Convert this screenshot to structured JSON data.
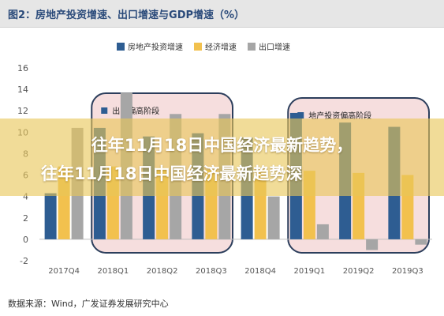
{
  "figure": {
    "title": "图2：房地产投资增速、出口增速与GDP增速（%）",
    "source": "数据来源：Wind，广发证券发展研究中心"
  },
  "overlay": {
    "headline_line1": "往年11月18日中国经济最新趋势，",
    "headline_line2": "往年11月18日中国经济最新趋势深"
  },
  "colors": {
    "real_estate": "#2e5d92",
    "gdp": "#f2c14e",
    "export": "#a6a6a6",
    "box_fill": "#f6dede",
    "box_stroke": "#2c3e5c",
    "overlay": "#e8c658"
  },
  "chart_data": {
    "type": "bar",
    "categories": [
      "2017Q4",
      "2018Q1",
      "2018Q2",
      "2018Q3",
      "2018Q4",
      "2019Q1",
      "2019Q2",
      "2019Q3"
    ],
    "series": [
      {
        "name": "房地产投资增速",
        "values": [
          4.3,
          10.4,
          9.6,
          9.9,
          9.5,
          11.8,
          10.9,
          10.5
        ]
      },
      {
        "name": "经济增速",
        "values": [
          6.8,
          6.8,
          6.7,
          6.5,
          6.4,
          6.4,
          6.2,
          6.0
        ]
      },
      {
        "name": "出口增速",
        "values": [
          10.4,
          13.7,
          11.7,
          11.7,
          4.0,
          1.4,
          -1.0,
          -0.5
        ]
      }
    ],
    "ylim": [
      -2,
      16
    ],
    "yticks": [
      -2,
      0,
      2,
      4,
      6,
      8,
      10,
      12,
      14,
      16
    ],
    "legend_position": "top-center",
    "annotations": [
      {
        "label": "出口偏高阶段",
        "from": "2018Q1",
        "to": "2018Q3"
      },
      {
        "label": "地产投资偏高阶段",
        "from": "2019Q1",
        "to": "2019Q3"
      }
    ]
  }
}
